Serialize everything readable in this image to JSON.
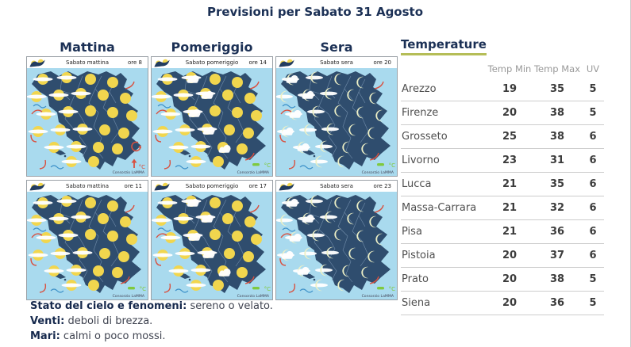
{
  "title": "Previsioni per Sabato 31 Agosto",
  "columns": [
    "Mattina",
    "Pomeriggio",
    "Sera"
  ],
  "panels": [
    {
      "label": "Sabato mattina",
      "time": "ore 8",
      "icon": "sun",
      "temp_trend": "up"
    },
    {
      "label": "Sabato pomeriggio",
      "time": "ore 14",
      "icon": "sun-cloud",
      "temp_trend": "steady"
    },
    {
      "label": "Sabato sera",
      "time": "ore 20",
      "icon": "moon",
      "temp_trend": "steady"
    },
    {
      "label": "Sabato mattina",
      "time": "ore 11",
      "icon": "sun",
      "temp_trend": "steady"
    },
    {
      "label": "Sabato pomeriggio",
      "time": "ore 17",
      "icon": "sun-cloud",
      "temp_trend": "steady"
    },
    {
      "label": "Sabato sera",
      "time": "ore 23",
      "icon": "moon",
      "temp_trend": "steady"
    }
  ],
  "map_credit": "Consorzio LaMMA",
  "temperature": {
    "title": "Temperature",
    "columns": [
      "Temp Min",
      "Temp Max",
      "UV"
    ],
    "rows": [
      {
        "city": "Arezzo",
        "min": 19,
        "max": 35,
        "uv": 5
      },
      {
        "city": "Firenze",
        "min": 20,
        "max": 38,
        "uv": 5
      },
      {
        "city": "Grosseto",
        "min": 25,
        "max": 38,
        "uv": 6
      },
      {
        "city": "Livorno",
        "min": 23,
        "max": 31,
        "uv": 6
      },
      {
        "city": "Lucca",
        "min": 21,
        "max": 35,
        "uv": 6
      },
      {
        "city": "Massa-Carrara",
        "min": 21,
        "max": 32,
        "uv": 6
      },
      {
        "city": "Pisa",
        "min": 21,
        "max": 36,
        "uv": 6
      },
      {
        "city": "Pistoia",
        "min": 20,
        "max": 37,
        "uv": 6
      },
      {
        "city": "Prato",
        "min": 20,
        "max": 38,
        "uv": 5
      },
      {
        "city": "Siena",
        "min": 20,
        "max": 36,
        "uv": 5
      }
    ]
  },
  "notes": [
    {
      "label": "Stato del cielo e fenomeni:",
      "text": "sereno o velato."
    },
    {
      "label": "Venti:",
      "text": "deboli di brezza."
    },
    {
      "label": "Mari:",
      "text": "calmi o poco mossi."
    }
  ],
  "colors": {
    "navy": "#1b3055",
    "underline_green": "#b5bd57",
    "sea": "#a9daee",
    "land": "#2f4d6e",
    "sun": "#f1d64e",
    "moon": "#edf0c6",
    "wind_red": "#d9503f",
    "temp_green": "#7fc93e",
    "wave_blue": "#3e92c9"
  }
}
